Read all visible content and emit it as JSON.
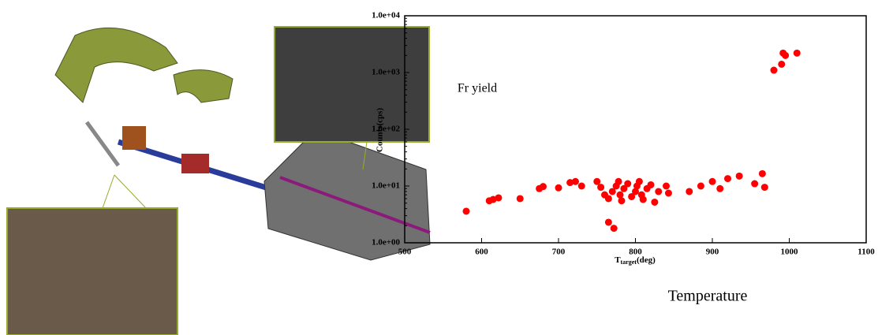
{
  "chart_data": {
    "type": "scatter",
    "y_label": "Counts(cps)",
    "x_label": {
      "main": "T",
      "sub": "target",
      "rest": "(deg)"
    },
    "annotations": [
      "Fr yield",
      "Temperature"
    ],
    "log_y": true,
    "color": "#ff0000",
    "xlim": [
      500,
      1100
    ],
    "xticks": [
      500,
      600,
      700,
      800,
      900,
      1000,
      1100
    ],
    "ylim": [
      1,
      10000
    ],
    "yticks": [
      {
        "value": 1,
        "label": "1.0e+00"
      },
      {
        "value": 10,
        "label": "1.0e+01"
      },
      {
        "value": 100,
        "label": "1.0e+02"
      },
      {
        "value": 1000,
        "label": "1.0e+03"
      },
      {
        "value": 10000,
        "label": "1.0e+04"
      }
    ],
    "x": [
      580,
      610,
      615,
      622,
      650,
      675,
      680,
      700,
      715,
      722,
      730,
      750,
      755,
      760,
      765,
      765,
      770,
      772,
      775,
      778,
      780,
      782,
      785,
      790,
      795,
      800,
      802,
      805,
      808,
      810,
      815,
      820,
      825,
      830,
      840,
      843,
      870,
      885,
      900,
      910,
      920,
      935,
      955,
      965,
      968,
      980,
      990,
      992,
      995,
      1010
    ],
    "values": [
      3.6,
      5.5,
      5.8,
      6.2,
      6,
      9,
      9.8,
      9.3,
      11.5,
      12,
      10,
      12,
      9.5,
      7,
      6,
      2.3,
      8,
      1.8,
      10,
      12,
      7,
      5.5,
      9,
      11,
      6.5,
      8,
      10,
      12,
      7,
      5.8,
      9,
      10.5,
      5.2,
      8,
      10,
      7.5,
      8,
      10,
      12,
      9,
      13.5,
      15,
      11,
      16.5,
      9.5,
      1100,
      1400,
      2200,
      2000,
      2200
    ]
  }
}
